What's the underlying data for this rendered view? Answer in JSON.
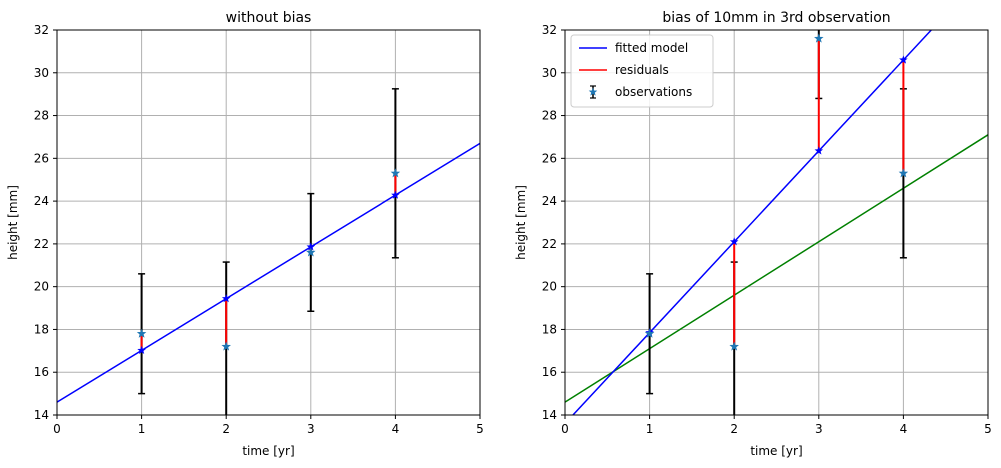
{
  "chart_data": [
    {
      "type": "scatter",
      "title": "without bias",
      "xlabel": "time [yr]",
      "ylabel": "height [mm]",
      "xlim": [
        0,
        5
      ],
      "ylim": [
        14,
        32
      ],
      "xticks": [
        "0",
        "1",
        "2",
        "3",
        "4",
        "5"
      ],
      "yticks": [
        "14",
        "16",
        "18",
        "20",
        "22",
        "24",
        "26",
        "28",
        "30",
        "32"
      ],
      "grid": true,
      "observations": {
        "x": [
          1,
          2,
          3,
          4
        ],
        "y": [
          17.8,
          17.2,
          21.6,
          25.3
        ],
        "error": [
          2.8,
          3.95,
          2.75,
          3.95
        ],
        "color": "#1f77b4"
      },
      "fitted_model": {
        "intercept": 14.6,
        "slope": 2.42,
        "color": "#0000ff"
      },
      "residual_color": "#ff0000",
      "errorbar_color": "#000000"
    },
    {
      "type": "scatter",
      "title": "bias of 10mm in 3rd observation",
      "xlabel": "time [yr]",
      "ylabel": "height [mm]",
      "xlim": [
        0,
        5
      ],
      "ylim": [
        14,
        32
      ],
      "xticks": [
        "0",
        "1",
        "2",
        "3",
        "4",
        "5"
      ],
      "yticks": [
        "14",
        "16",
        "18",
        "20",
        "22",
        "24",
        "26",
        "28",
        "30",
        "32"
      ],
      "grid": true,
      "observations": {
        "x": [
          1,
          2,
          3,
          4
        ],
        "y": [
          17.8,
          17.2,
          31.6,
          25.3
        ],
        "error": [
          2.8,
          3.95,
          2.8,
          3.95
        ],
        "color": "#1f77b4"
      },
      "fitted_model": {
        "intercept": 13.6,
        "slope": 4.25,
        "color": "#0000ff"
      },
      "reference_line": {
        "intercept": 14.6,
        "slope": 2.5,
        "color": "#008000"
      },
      "residual_color": "#ff0000",
      "errorbar_color": "#000000",
      "legend": {
        "placement": "top-left",
        "entries": [
          "fitted model",
          "residuals",
          "observations"
        ]
      }
    }
  ]
}
